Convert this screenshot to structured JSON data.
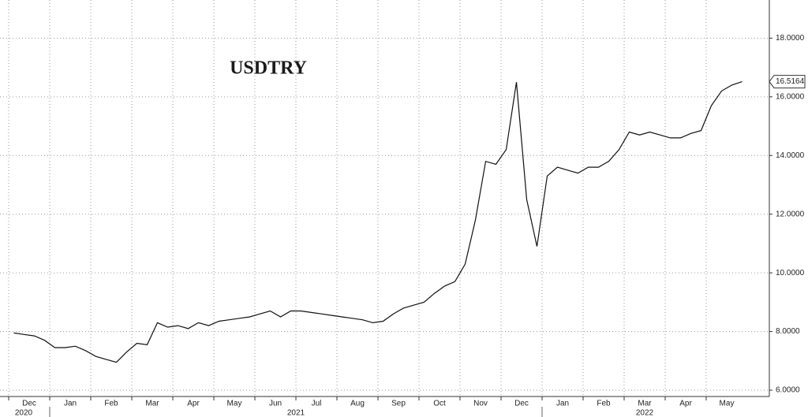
{
  "chart_data": {
    "type": "line",
    "title": "USDTRY",
    "categories": [
      null,
      "Dec",
      null,
      null,
      null,
      "Jan",
      null,
      null,
      null,
      "Feb",
      null,
      null,
      null,
      "Mar",
      null,
      null,
      null,
      "Apr",
      null,
      null,
      null,
      "May",
      null,
      null,
      null,
      "Jun",
      null,
      null,
      null,
      "Jul",
      null,
      null,
      null,
      "Aug",
      null,
      null,
      null,
      "Sep",
      null,
      null,
      null,
      "Oct",
      null,
      null,
      null,
      "Nov",
      null,
      null,
      null,
      "Dec",
      null,
      null,
      null,
      "Jan",
      null,
      null,
      null,
      "Feb",
      null,
      null,
      null,
      "Mar",
      null,
      null,
      null,
      "Apr",
      null,
      null,
      null,
      "May",
      null,
      null
    ],
    "year_labels": [
      "2020",
      "2021",
      "2022"
    ],
    "series": [
      {
        "name": "USDTRY",
        "color": "#111111",
        "values": [
          7.95,
          7.9,
          7.85,
          7.7,
          7.45,
          7.45,
          7.5,
          7.35,
          7.15,
          7.05,
          6.95,
          7.3,
          7.6,
          7.55,
          8.3,
          8.15,
          8.2,
          8.1,
          8.3,
          8.2,
          8.35,
          8.4,
          8.45,
          8.5,
          8.6,
          8.7,
          8.5,
          8.7,
          8.7,
          8.65,
          8.6,
          8.55,
          8.5,
          8.45,
          8.4,
          8.3,
          8.35,
          8.6,
          8.8,
          8.9,
          9.0,
          9.3,
          9.55,
          9.7,
          10.3,
          11.8,
          13.8,
          13.7,
          14.2,
          16.5,
          12.5,
          10.9,
          13.3,
          13.6,
          13.5,
          13.4,
          13.6,
          13.6,
          13.8,
          14.2,
          14.8,
          14.7,
          14.8,
          14.7,
          14.6,
          14.6,
          14.75,
          14.85,
          15.7,
          16.2,
          16.4,
          16.5164
        ],
        "value_labels": [
          null,
          null,
          null,
          null,
          null,
          null,
          null,
          null,
          null,
          null,
          null,
          null,
          null,
          null,
          null,
          null,
          null,
          null,
          null,
          null,
          null,
          null,
          null,
          null,
          null,
          null,
          null,
          null,
          null,
          null,
          null,
          null,
          null,
          null,
          null,
          null,
          null,
          null,
          null,
          null,
          null,
          null,
          null,
          null,
          null,
          null,
          null,
          null,
          null,
          null,
          null,
          null,
          null,
          null,
          null,
          null,
          null,
          null,
          null,
          null,
          null,
          null,
          null,
          null,
          null,
          null,
          null,
          null,
          null,
          null,
          null,
          "16.5164"
        ]
      }
    ],
    "ylim": [
      6,
      19.3
    ],
    "yticks": [
      {
        "value": 6,
        "label": "6.0000"
      },
      {
        "value": 8,
        "label": "8.0000"
      },
      {
        "value": 10,
        "label": "10.0000"
      },
      {
        "value": 12,
        "label": "12.0000"
      },
      {
        "value": 14,
        "label": "14.0000"
      },
      {
        "value": 16,
        "label": "16.0000"
      },
      {
        "value": 18,
        "label": "18.0000"
      }
    ],
    "grid": true
  }
}
